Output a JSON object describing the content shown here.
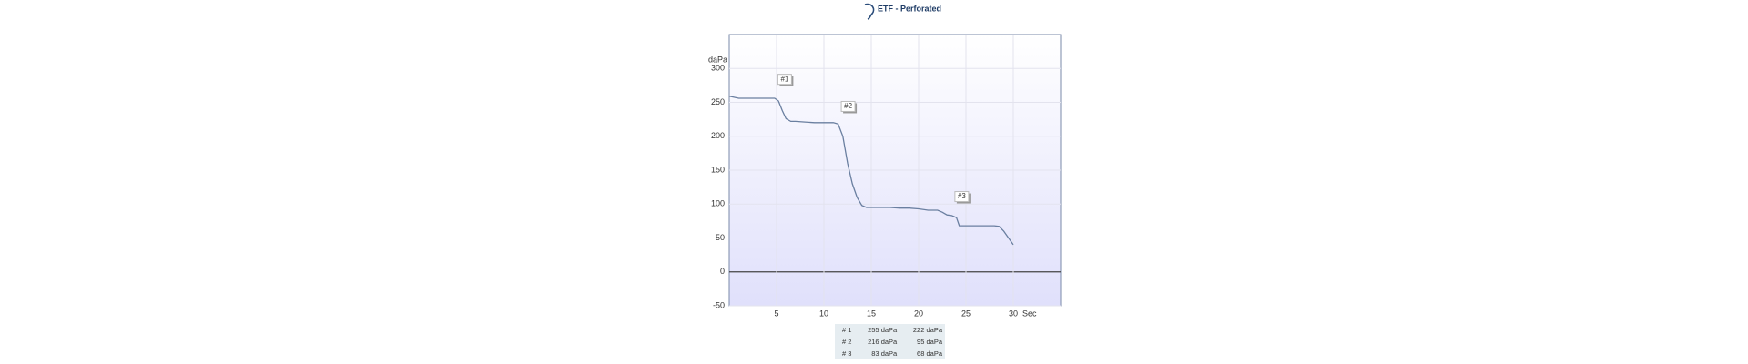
{
  "chart_data": {
    "type": "line",
    "title": "ETF - Perforated",
    "x_label": "Sec",
    "y_label": "daPa",
    "x": [
      0,
      1,
      2,
      3,
      4,
      4.8,
      5.2,
      5.6,
      6,
      6.5,
      7,
      8,
      9,
      10,
      11,
      11.5,
      12,
      12.5,
      13,
      13.5,
      14,
      14.5,
      15,
      16,
      17,
      18,
      19,
      20,
      21,
      22,
      22.5,
      23,
      23.5,
      24,
      24.3,
      25,
      26,
      27,
      28,
      28.5,
      29,
      29.5,
      30
    ],
    "values": [
      259,
      256,
      256,
      256,
      256,
      256,
      252,
      238,
      226,
      222,
      222,
      221,
      220,
      220,
      220,
      218,
      200,
      160,
      130,
      110,
      98,
      95,
      95,
      95,
      95,
      94,
      94,
      93,
      91,
      91,
      88,
      84,
      83,
      80,
      68,
      68,
      68,
      68,
      68,
      67,
      60,
      50,
      40
    ],
    "color": "#6a7fa0",
    "xlim": [
      0,
      35
    ],
    "xticks": [
      5,
      10,
      15,
      20,
      25,
      30
    ],
    "ylim": [
      -50,
      350
    ],
    "yticks": [
      -50,
      0,
      50,
      100,
      150,
      200,
      250,
      300
    ],
    "grid": true,
    "annotations": [
      {
        "text": "#1",
        "x": 6,
        "y": 282
      },
      {
        "text": "#2",
        "x": 12.7,
        "y": 242
      },
      {
        "text": "#3",
        "x": 24.7,
        "y": 109
      }
    ]
  },
  "table": {
    "rows": [
      [
        "# 1",
        "255 daPa",
        "222 daPa"
      ],
      [
        "# 2",
        "216 daPa",
        "95 daPa"
      ],
      [
        "# 3",
        "83 daPa",
        "68 daPa"
      ]
    ]
  }
}
